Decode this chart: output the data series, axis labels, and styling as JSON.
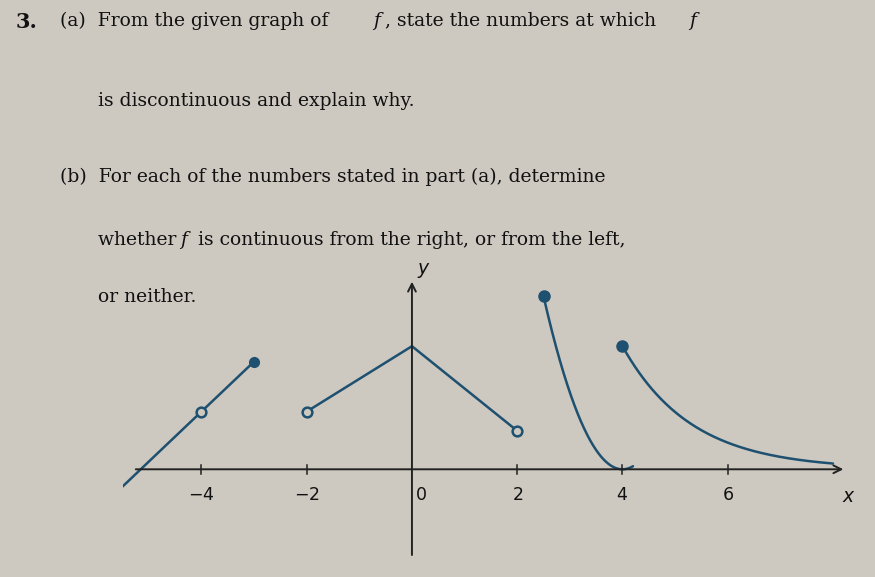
{
  "background_color": "#cdc8c0",
  "curve_color": "#1e5070",
  "axis_color": "#222222",
  "text_color": "#111111",
  "xmin": -5.5,
  "xmax": 8.3,
  "ymin": -2.5,
  "ymax": 5.0,
  "xticks": [
    -4,
    -2,
    2,
    4,
    6
  ],
  "p1_x0": -5.5,
  "p1_open_x": -4.0,
  "p1_open_y": 1.5,
  "p1_filled_x": -3.0,
  "p1_filled_y": 2.8,
  "p2_open_x": -2.0,
  "p2_open_y": 1.5,
  "p2_peak_x": 0.0,
  "p2_peak_y": 3.2,
  "p3_open_x": 2.0,
  "p3_open_y": 1.0,
  "p4_filled_x": 2.5,
  "p4_filled_y": 4.5,
  "p4_end_x": 4.0,
  "p5_filled_x": 4.0,
  "p5_filled_y": 3.2,
  "p5_end_x": 8.0,
  "p5_end_y": 0.15
}
